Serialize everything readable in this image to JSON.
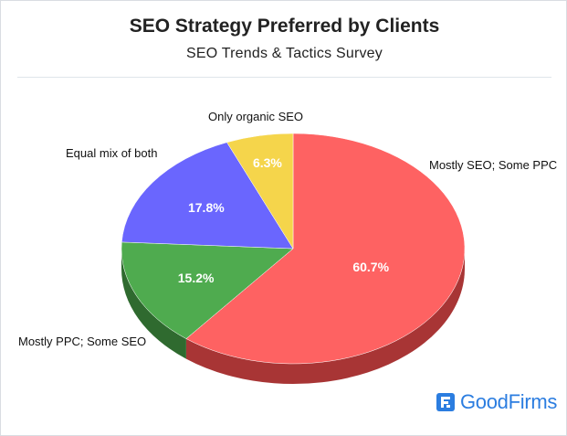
{
  "chart_data": {
    "type": "pie",
    "title": "SEO Strategy Preferred by Clients",
    "subtitle": "SEO Trends & Tactics Survey",
    "slices": [
      {
        "label": "Mostly SEO; Some PPC",
        "value": 60.7,
        "value_label": "60.7%",
        "color": "#fe6262",
        "dark": "#a83535"
      },
      {
        "label": "Mostly PPC; Some SEO",
        "value": 15.2,
        "value_label": "15.2%",
        "color": "#4fab4f",
        "dark": "#2f6a2f"
      },
      {
        "label": "Equal mix of both",
        "value": 17.8,
        "value_label": "17.8%",
        "color": "#6a66fe",
        "dark": "#3c3aa0"
      },
      {
        "label": "Only organic SEO",
        "value": 6.3,
        "value_label": "6.3%",
        "color": "#f5d54b",
        "dark": "#a88e27"
      }
    ],
    "legend": "none"
  },
  "brand": {
    "name": "GoodFirms",
    "color": "#2b7de0",
    "icon": "goodfirms-logo-icon"
  }
}
